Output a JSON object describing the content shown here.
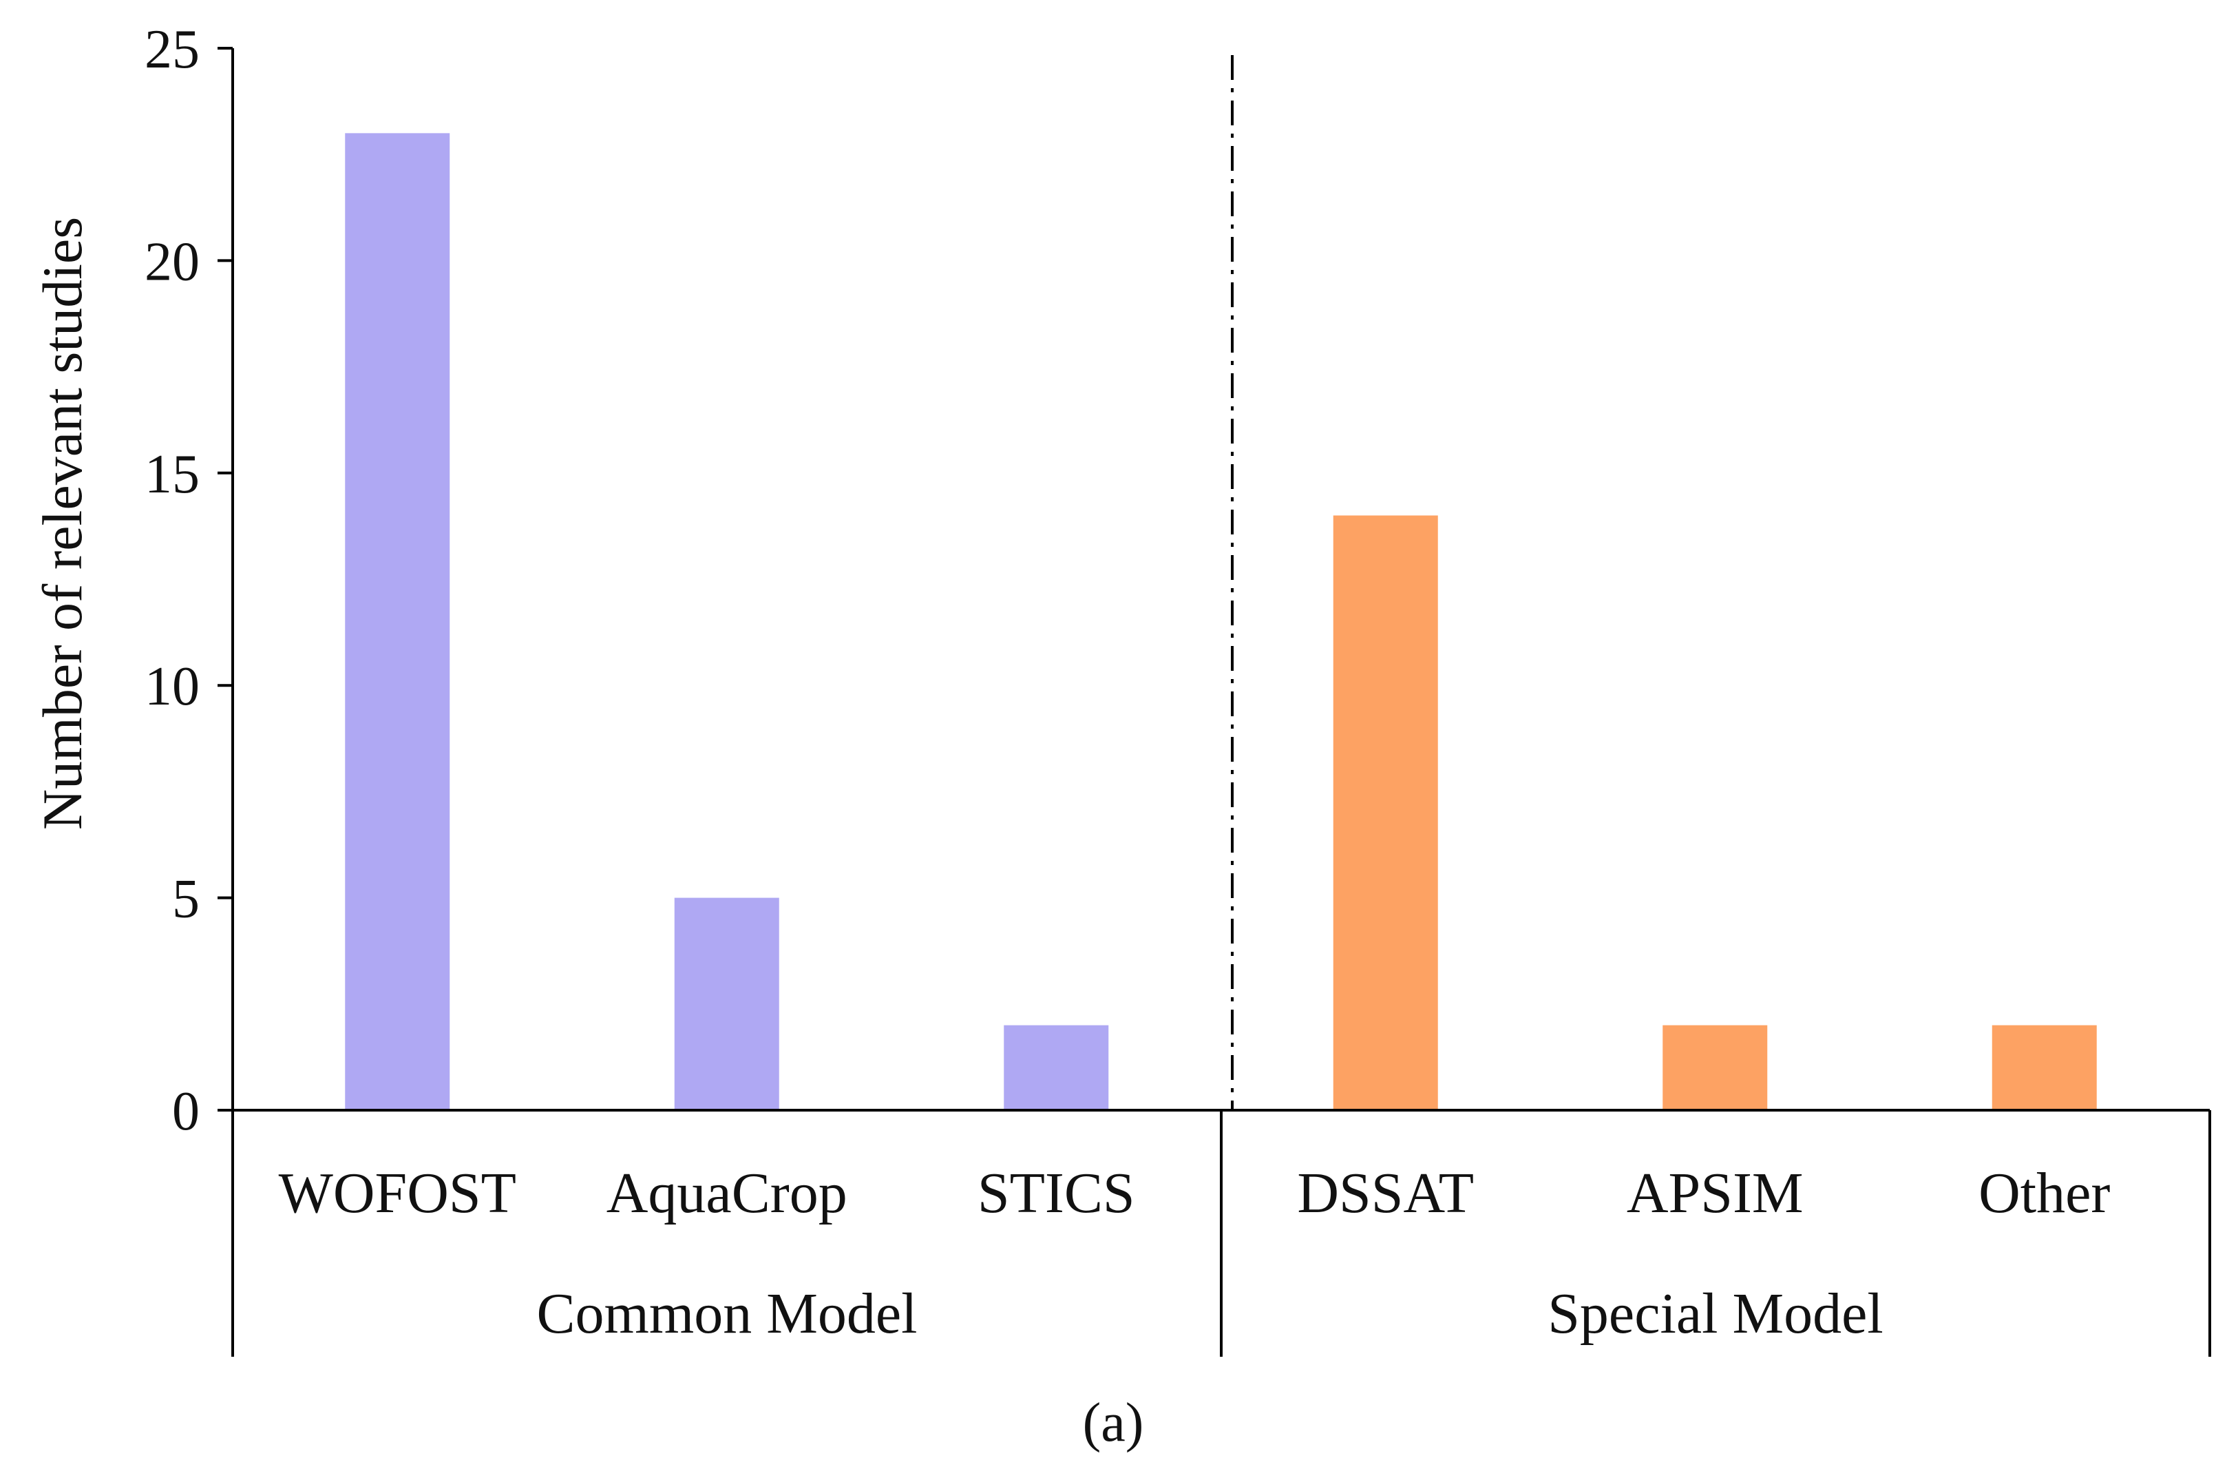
{
  "chart_data": {
    "type": "bar",
    "ylabel": "Number of relevant studies",
    "ylim": [
      0,
      25
    ],
    "yticks": [
      0,
      5,
      10,
      15,
      20,
      25
    ],
    "categories": [
      "WOFOST",
      "AquaCrop",
      "STICS",
      "DSSAT",
      "APSIM",
      "Other"
    ],
    "values": [
      23,
      5,
      2,
      14,
      2,
      2
    ],
    "groups": [
      {
        "name": "Common Model",
        "categories": [
          "WOFOST",
          "AquaCrop",
          "STICS"
        ],
        "color": "#afa8f3"
      },
      {
        "name": "Special Model",
        "categories": [
          "DSSAT",
          "APSIM",
          "Other"
        ],
        "color": "#fda263"
      }
    ],
    "divider": "dash-dot line between Common Model and Special Model",
    "panel_label": "(a)",
    "grid": false
  }
}
